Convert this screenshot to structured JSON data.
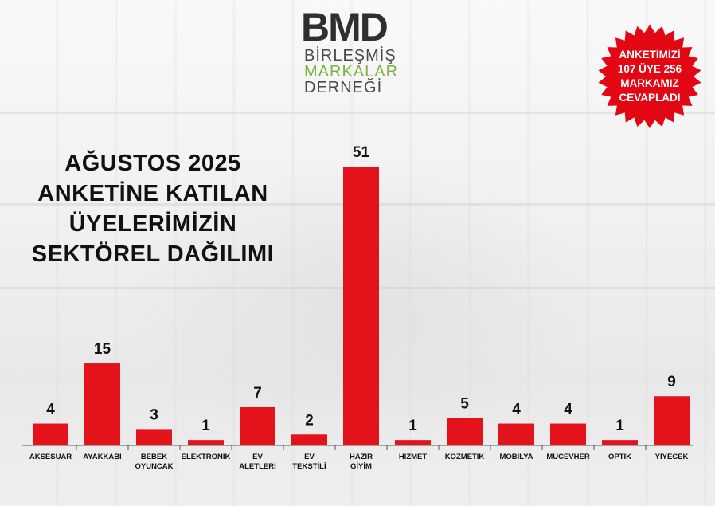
{
  "logo": {
    "mark": "BMD",
    "line1": "BİRLEŞMİŞ",
    "line2": "MARKALAR",
    "line3": "DERNEĞİ"
  },
  "title_lines": [
    "AĞUSTOS 2025",
    "ANKETİNE KATILAN",
    "ÜYELERİMİZİN",
    "SEKTÖREL DAĞILIMI"
  ],
  "badge": {
    "lines": [
      "ANKETİMİZİ",
      "107 ÜYE 256",
      "MARKAMIZ",
      "CEVAPLADI"
    ],
    "color": "#e30613"
  },
  "colors": {
    "bar": "#e3121b",
    "axis": "#555555",
    "text": "#111111"
  },
  "chart_data": {
    "type": "bar",
    "title": "AĞUSTOS 2025 ANKETİNE KATILAN ÜYELERİMİZİN SEKTÖREL DAĞILIMI",
    "categories": [
      [
        "AKSESUAR"
      ],
      [
        "AYAKKABI"
      ],
      [
        "BEBEK",
        "OYUNCAK"
      ],
      [
        "ELEKTRONİK"
      ],
      [
        "EV",
        "ALETLERİ"
      ],
      [
        "EV",
        "TEKSTİLİ"
      ],
      [
        "HAZIR",
        "GİYİM"
      ],
      [
        "HİZMET"
      ],
      [
        "KOZMETİK"
      ],
      [
        "MOBİLYA"
      ],
      [
        "MÜCEVHER"
      ],
      [
        "OPTİK"
      ],
      [
        "YİYECEK"
      ]
    ],
    "values": [
      4,
      15,
      3,
      1,
      7,
      2,
      51,
      1,
      5,
      4,
      4,
      1,
      9
    ],
    "data_labels": true,
    "ylim": [
      0,
      51
    ],
    "grid": false,
    "legend": "none"
  }
}
